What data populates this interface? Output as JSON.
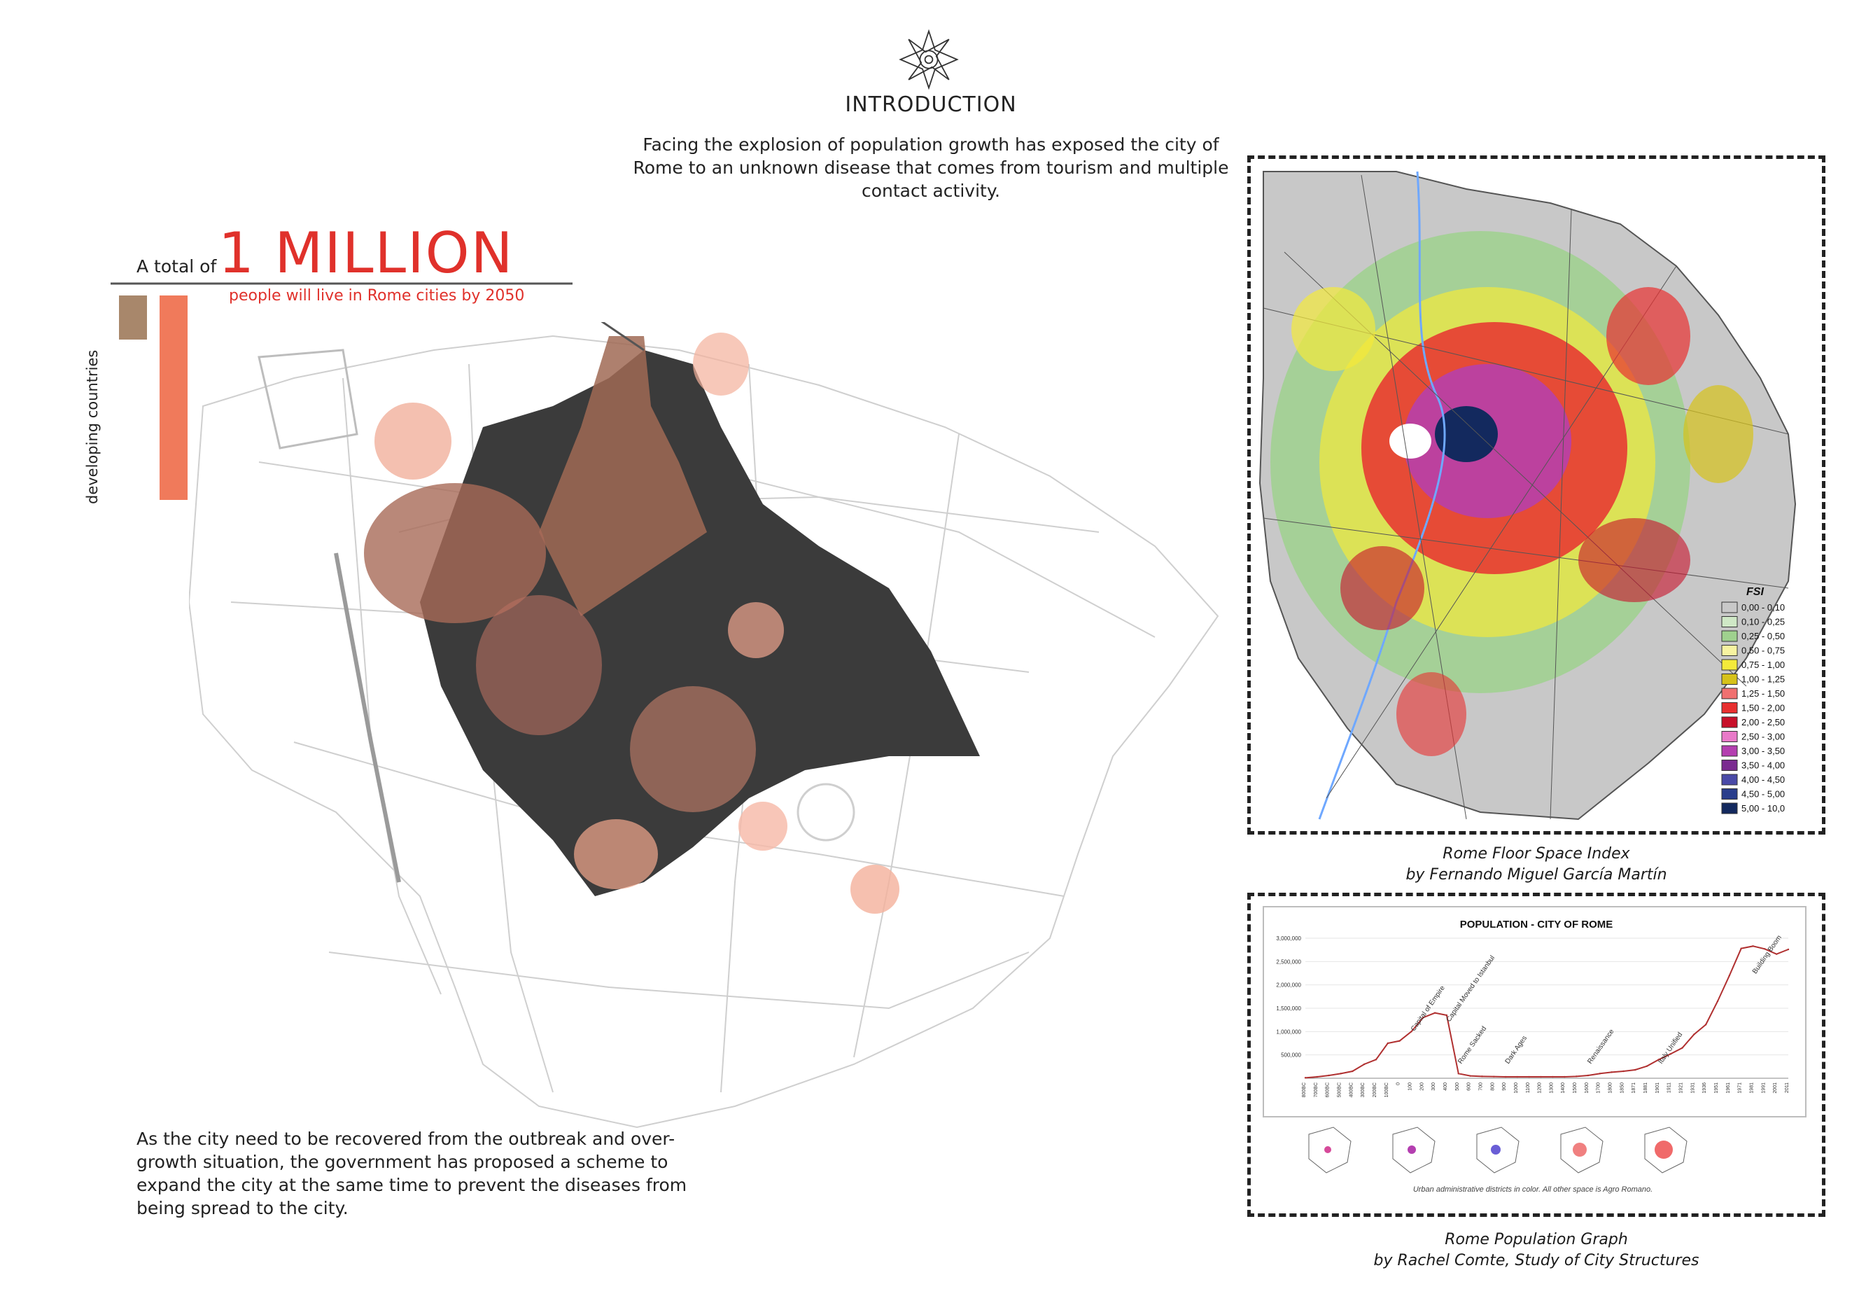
{
  "intro": {
    "title": "INTRODUCTION",
    "text": "Facing the explosion of population growth has exposed the city of Rome to an unknown disease that comes from tourism and multiple contact activity."
  },
  "stat": {
    "prefix": "A total of",
    "value": "1 MILLION",
    "subtitle": "people will live in Rome cities by 2050",
    "side_label": "developing countries",
    "bars": [
      {
        "color": "#a8876b",
        "level": 0.22
      },
      {
        "color": "#f07a5b",
        "level": 1.0
      }
    ]
  },
  "bottom_text": "As the city need to be recovered from the outbreak and over-growth situation, the government has proposed a scheme to expand the city at the same time to prevent the diseases from being spread to the city.",
  "fsi_figure": {
    "legend_title": "FSI",
    "legend": [
      {
        "label": "0,00 - 0,10",
        "color": "#c8c8c8"
      },
      {
        "label": "0,10 - 0,25",
        "color": "#cfe8c6"
      },
      {
        "label": "0,25 - 0,50",
        "color": "#9fd18e"
      },
      {
        "label": "0,50 - 0,75",
        "color": "#f7f3a0"
      },
      {
        "label": "0,75 - 1,00",
        "color": "#f3ea3a"
      },
      {
        "label": "1,00 - 1,25",
        "color": "#d6c21a"
      },
      {
        "label": "1,25 - 1,50",
        "color": "#f07070"
      },
      {
        "label": "1,50 - 2,00",
        "color": "#e83030"
      },
      {
        "label": "2,00 - 2,50",
        "color": "#c8102a"
      },
      {
        "label": "2,50 - 3,00",
        "color": "#e97ac9"
      },
      {
        "label": "3,00 - 3,50",
        "color": "#b43fb0"
      },
      {
        "label": "3,50 - 4,00",
        "color": "#7a2a90"
      },
      {
        "label": "4,00 - 4,50",
        "color": "#4a4aa8"
      },
      {
        "label": "4,50 - 5,00",
        "color": "#2a3e8c"
      },
      {
        "label": "5,00 - 10,0",
        "color": "#13295e"
      }
    ],
    "caption_line1": "Rome Floor Space Index",
    "caption_line2": "by Fernando Miguel García Martín"
  },
  "pop_figure": {
    "caption_line1": "Rome Population Graph",
    "caption_line2": "by Rachel Comte, Study of City Structures",
    "footnote": "Urban administrative districts in color. All other space is Agro Romano."
  },
  "chart_data": {
    "type": "line",
    "title": "POPULATION - CITY OF ROME",
    "xlabel": "",
    "ylabel": "",
    "ylim": [
      0,
      3000000
    ],
    "yticks": [
      "3,000,000",
      "2,500,000",
      "2,000,000",
      "1,500,000",
      "1,000,000",
      "500,000"
    ],
    "categories": [
      "800BC",
      "700BC",
      "600BC",
      "500BC",
      "400BC",
      "300BC",
      "200BC",
      "100BC",
      "0",
      "100",
      "200",
      "300",
      "400",
      "500",
      "600",
      "700",
      "800",
      "900",
      "1000",
      "1100",
      "1200",
      "1300",
      "1400",
      "1500",
      "1600",
      "1700",
      "1800",
      "1850",
      "1871",
      "1881",
      "1901",
      "1911",
      "1921",
      "1931",
      "1936",
      "1951",
      "1961",
      "1971",
      "1981",
      "1991",
      "2001",
      "2011"
    ],
    "series": [
      {
        "values": [
          10000,
          30000,
          60000,
          100000,
          150000,
          300000,
          400000,
          750000,
          800000,
          1000000,
          1300000,
          1400000,
          1350000,
          100000,
          50000,
          40000,
          35000,
          30000,
          30000,
          30000,
          30000,
          30000,
          30000,
          40000,
          60000,
          100000,
          130000,
          150000,
          180000,
          260000,
          400000,
          520000,
          650000,
          940000,
          1150000,
          1650000,
          2200000,
          2780000,
          2830000,
          2770000,
          2660000,
          2760000
        ]
      }
    ],
    "annotations": [
      "Capital of Empire",
      "Capital Moved to Istanbul",
      "Rome Sacked",
      "Dark Ages",
      "Renaissance",
      "Italy Unified",
      "Building Boom"
    ]
  }
}
